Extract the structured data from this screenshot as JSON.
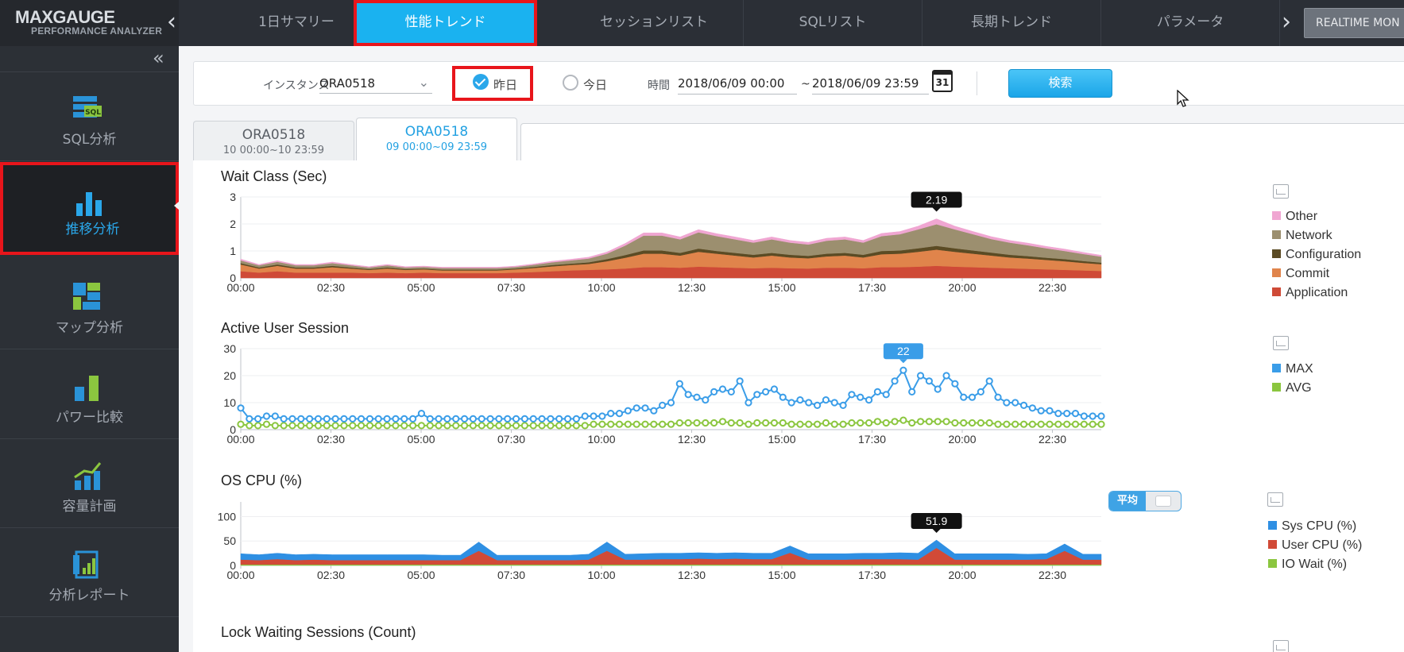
{
  "app": {
    "logo_name": "MAXGAUGE",
    "logo_sub": "PERFORMANCE ANALYZER",
    "realtime_label": "REALTIME MON"
  },
  "nav": {
    "tabs": [
      "1日サマリー",
      "性能トレンド",
      "セッションリスト",
      "SQLリスト",
      "長期トレンド",
      "パラメータ"
    ],
    "active_index": 1
  },
  "sidebar": {
    "items": [
      "SQL分析",
      "推移分析",
      "マップ分析",
      "パワー比較",
      "容量計画",
      "分析レポート"
    ],
    "active_index": 1
  },
  "filter": {
    "instance_label": "インスタンス",
    "instance_value": "ORA0518",
    "radio_yesterday": "昨日",
    "radio_today": "今日",
    "selected_radio": "昨日",
    "time_label": "時間",
    "time_from": "2018/06/09 00:00",
    "time_sep": "~",
    "time_to": "2018/06/09 23:59",
    "calendar_day": "31",
    "search_label": "検索"
  },
  "instance_tabs": [
    {
      "name": "ORA0518",
      "range": "10 00:00~10 23:59"
    },
    {
      "name": "ORA0518",
      "range": "09 00:00~09 23:59"
    }
  ],
  "active_instance_tab": 1,
  "colors": {
    "accent": "#1ab2f0",
    "highlight_border": "#e8151b",
    "other": "#f0a6d2",
    "network": "#9c8f6f",
    "configuration": "#5b4b24",
    "commit": "#e0844b",
    "application": "#cf4a37",
    "max": "#3a9de8",
    "avg": "#8bc63f",
    "sys_cpu": "#2e8fe3",
    "user_cpu": "#d14a37",
    "io_wait": "#8bc63f"
  },
  "chart_data": [
    {
      "type": "area",
      "title": "Wait Class (Sec)",
      "x_ticks": [
        "00:00",
        "02:30",
        "05:00",
        "07:30",
        "10:00",
        "12:30",
        "15:00",
        "17:30",
        "20:00",
        "22:30"
      ],
      "y_ticks": [
        "0",
        "1",
        "2",
        "3"
      ],
      "ylim": [
        0,
        3
      ],
      "x": [
        "00:00",
        "00:30",
        "01:00",
        "01:30",
        "02:00",
        "02:30",
        "03:00",
        "03:30",
        "04:00",
        "04:30",
        "05:00",
        "05:30",
        "06:00",
        "06:30",
        "07:00",
        "07:30",
        "08:00",
        "08:30",
        "09:00",
        "09:30",
        "10:00",
        "10:30",
        "11:00",
        "11:30",
        "12:00",
        "12:30",
        "13:00",
        "13:30",
        "14:00",
        "14:30",
        "15:00",
        "15:30",
        "16:00",
        "16:30",
        "17:00",
        "17:30",
        "18:00",
        "18:30",
        "19:00",
        "19:30",
        "20:00",
        "20:30",
        "21:00",
        "21:30",
        "22:00",
        "22:30",
        "23:00",
        "23:30"
      ],
      "series": [
        {
          "name": "Application",
          "values": [
            0.25,
            0.2,
            0.25,
            0.2,
            0.2,
            0.2,
            0.2,
            0.18,
            0.2,
            0.18,
            0.2,
            0.18,
            0.18,
            0.18,
            0.18,
            0.2,
            0.22,
            0.25,
            0.28,
            0.3,
            0.32,
            0.35,
            0.4,
            0.4,
            0.38,
            0.42,
            0.4,
            0.38,
            0.36,
            0.38,
            0.36,
            0.35,
            0.38,
            0.38,
            0.36,
            0.4,
            0.4,
            0.42,
            0.45,
            0.42,
            0.4,
            0.38,
            0.36,
            0.34,
            0.32,
            0.3,
            0.28,
            0.26
          ]
        },
        {
          "name": "Commit",
          "values": [
            0.25,
            0.15,
            0.2,
            0.15,
            0.15,
            0.2,
            0.15,
            0.12,
            0.15,
            0.12,
            0.12,
            0.1,
            0.1,
            0.1,
            0.1,
            0.12,
            0.15,
            0.18,
            0.2,
            0.22,
            0.3,
            0.4,
            0.5,
            0.5,
            0.45,
            0.55,
            0.5,
            0.45,
            0.4,
            0.45,
            0.4,
            0.38,
            0.42,
            0.45,
            0.4,
            0.48,
            0.5,
            0.55,
            0.6,
            0.55,
            0.5,
            0.45,
            0.4,
            0.38,
            0.35,
            0.32,
            0.28,
            0.25
          ]
        },
        {
          "name": "Configuration",
          "values": [
            0.05,
            0.04,
            0.05,
            0.04,
            0.04,
            0.05,
            0.04,
            0.03,
            0.04,
            0.03,
            0.03,
            0.03,
            0.03,
            0.03,
            0.03,
            0.03,
            0.04,
            0.05,
            0.05,
            0.06,
            0.08,
            0.1,
            0.12,
            0.12,
            0.1,
            0.12,
            0.1,
            0.1,
            0.1,
            0.1,
            0.1,
            0.09,
            0.1,
            0.1,
            0.1,
            0.12,
            0.12,
            0.13,
            0.14,
            0.13,
            0.12,
            0.11,
            0.1,
            0.09,
            0.08,
            0.08,
            0.07,
            0.06
          ]
        },
        {
          "name": "Network",
          "values": [
            0.1,
            0.08,
            0.1,
            0.08,
            0.08,
            0.1,
            0.08,
            0.06,
            0.08,
            0.06,
            0.06,
            0.06,
            0.06,
            0.06,
            0.06,
            0.06,
            0.08,
            0.1,
            0.12,
            0.14,
            0.2,
            0.35,
            0.55,
            0.55,
            0.5,
            0.6,
            0.55,
            0.5,
            0.45,
            0.5,
            0.45,
            0.42,
            0.48,
            0.5,
            0.45,
            0.55,
            0.6,
            0.7,
            0.8,
            0.7,
            0.6,
            0.5,
            0.45,
            0.4,
            0.35,
            0.3,
            0.26,
            0.22
          ]
        },
        {
          "name": "Other",
          "values": [
            0.05,
            0.03,
            0.04,
            0.03,
            0.03,
            0.04,
            0.03,
            0.03,
            0.03,
            0.03,
            0.03,
            0.03,
            0.03,
            0.03,
            0.03,
            0.03,
            0.03,
            0.04,
            0.04,
            0.05,
            0.06,
            0.08,
            0.1,
            0.1,
            0.09,
            0.1,
            0.09,
            0.09,
            0.08,
            0.09,
            0.08,
            0.08,
            0.09,
            0.09,
            0.08,
            0.1,
            0.1,
            0.12,
            0.2,
            0.12,
            0.1,
            0.09,
            0.08,
            0.08,
            0.07,
            0.07,
            0.06,
            0.05
          ]
        }
      ],
      "tooltip": "2.19"
    },
    {
      "type": "line",
      "title": "Active User Session",
      "x_ticks": [
        "00:00",
        "02:30",
        "05:00",
        "07:30",
        "10:00",
        "12:30",
        "15:00",
        "17:30",
        "20:00",
        "22:30"
      ],
      "y_ticks": [
        "0",
        "10",
        "20",
        "30"
      ],
      "ylim": [
        0,
        30
      ],
      "series": [
        {
          "name": "MAX",
          "values": [
            8,
            4,
            4,
            5,
            5,
            4,
            4,
            4,
            4,
            4,
            4,
            4,
            4,
            4,
            4,
            4,
            4,
            4,
            4,
            4,
            4,
            6,
            4,
            4,
            4,
            4,
            4,
            4,
            4,
            4,
            4,
            4,
            4,
            4,
            4,
            4,
            4,
            4,
            4,
            4,
            5,
            5,
            5,
            6,
            6,
            7,
            8,
            8,
            7,
            9,
            10,
            17,
            13,
            12,
            11,
            14,
            15,
            14,
            18,
            10,
            13,
            14,
            15,
            12,
            10,
            11,
            10,
            9,
            11,
            10,
            9,
            13,
            12,
            11,
            14,
            13,
            18,
            22,
            14,
            20,
            18,
            15,
            20,
            17,
            12,
            12,
            14,
            18,
            12,
            10,
            10,
            9,
            8,
            7,
            7,
            6,
            6,
            6,
            5,
            5,
            5
          ]
        },
        {
          "name": "AVG",
          "values": [
            2,
            1.5,
            1.5,
            2,
            1.5,
            1.5,
            1.5,
            1.5,
            1.5,
            1.5,
            1.5,
            1.5,
            1.5,
            1.5,
            1.5,
            1.5,
            1.5,
            1.5,
            1.5,
            1.5,
            1.5,
            1.5,
            1.5,
            1.5,
            1.5,
            1.5,
            1.5,
            1.5,
            1.5,
            1.5,
            1.5,
            1.5,
            1.5,
            1.5,
            1.5,
            1.5,
            1.5,
            1.5,
            1.5,
            1.5,
            1.5,
            2,
            2,
            2,
            2,
            2,
            2,
            2,
            2,
            2,
            2,
            2.5,
            2.5,
            2.5,
            2.5,
            2.5,
            3,
            2.5,
            2.5,
            2,
            2.5,
            2.5,
            2.5,
            2.5,
            2,
            2,
            2,
            2,
            2.5,
            2,
            2,
            2.5,
            2.5,
            2.5,
            3,
            2.5,
            3,
            3.5,
            2.5,
            3,
            3,
            3,
            3,
            2.5,
            2.5,
            2.5,
            2.5,
            2.5,
            2,
            2,
            2,
            2,
            2,
            2,
            2,
            2,
            2,
            2,
            2,
            2,
            2
          ]
        }
      ],
      "tooltip": "22"
    },
    {
      "type": "area",
      "title": "OS CPU (%)",
      "x_ticks": [
        "00:00",
        "02:30",
        "05:00",
        "07:30",
        "10:00",
        "12:30",
        "15:00",
        "17:30",
        "20:00",
        "22:30"
      ],
      "y_ticks": [
        "0",
        "50",
        "100"
      ],
      "ylim": [
        0,
        130
      ],
      "series": [
        {
          "name": "IO Wait (%)",
          "values": [
            2,
            2,
            2,
            2,
            2,
            2,
            2,
            2,
            2,
            2,
            2,
            2,
            2,
            2,
            2,
            2,
            2,
            2,
            2,
            2,
            2,
            2,
            2,
            2,
            2,
            2,
            2,
            2,
            2,
            2,
            2,
            2,
            2,
            2,
            2,
            2,
            2,
            2,
            2,
            2,
            2,
            2,
            2,
            2,
            2,
            2,
            2,
            2
          ]
        },
        {
          "name": "User CPU (%)",
          "values": [
            10,
            9,
            11,
            9,
            10,
            9,
            9,
            9,
            9,
            9,
            9,
            9,
            9,
            28,
            9,
            9,
            9,
            9,
            9,
            10,
            28,
            10,
            10,
            11,
            11,
            12,
            11,
            12,
            11,
            11,
            24,
            10,
            10,
            10,
            11,
            11,
            11,
            10,
            34,
            10,
            10,
            10,
            10,
            10,
            11,
            28,
            10,
            10
          ]
        },
        {
          "name": "Sys CPU (%)",
          "values": [
            12,
            11,
            12,
            11,
            11,
            11,
            11,
            11,
            11,
            11,
            11,
            10,
            10,
            18,
            10,
            10,
            10,
            10,
            10,
            11,
            18,
            11,
            12,
            12,
            12,
            12,
            12,
            12,
            12,
            12,
            14,
            12,
            12,
            12,
            12,
            12,
            13,
            13,
            16,
            12,
            12,
            12,
            12,
            11,
            11,
            14,
            11,
            11
          ]
        }
      ],
      "tooltip": "51.9",
      "toggle_label": "平均"
    },
    {
      "type": "line",
      "title": "Lock Waiting Sessions (Count)"
    }
  ]
}
